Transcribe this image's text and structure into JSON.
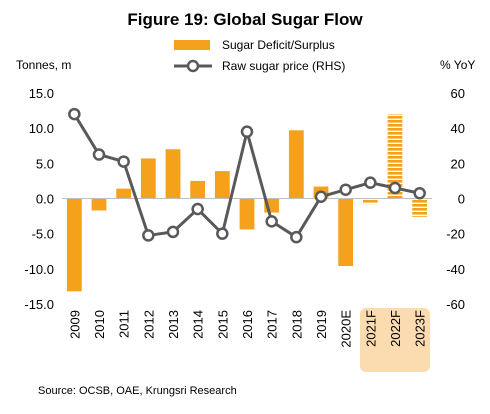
{
  "chart_data": {
    "type": "bar",
    "title": "Figure 19: Global Sugar Flow",
    "y_left_unit": "Tonnes, m",
    "y_right_unit": "% YoY",
    "categories": [
      "2009",
      "2010",
      "2011",
      "2012",
      "2013",
      "2014",
      "2015",
      "2016",
      "2017",
      "2018",
      "2019",
      "2020E",
      "2021F",
      "2022F",
      "2023F"
    ],
    "forecast_categories": [
      "2021F",
      "2022F",
      "2023F"
    ],
    "series": [
      {
        "name": "Sugar Deficit/Surplus",
        "kind": "bar",
        "axis": "left",
        "color": "#F5A11C",
        "values": [
          -13.2,
          -1.7,
          1.4,
          5.7,
          7.0,
          2.5,
          3.9,
          -4.4,
          -2.0,
          9.7,
          1.7,
          -9.6,
          -0.8,
          12.0,
          -2.6
        ]
      },
      {
        "name": "Raw sugar price (RHS)",
        "kind": "line",
        "axis": "right",
        "color": "#595959",
        "values": [
          48,
          25,
          21,
          -21,
          -19,
          -6,
          -20,
          38,
          -13,
          -22,
          1,
          5,
          9,
          6,
          3
        ]
      }
    ],
    "y_left": {
      "min": -15,
      "max": 15,
      "ticks": [
        "15.0",
        "10.0",
        "5.0",
        "0.0",
        "-5.0",
        "-10.0",
        "-15.0"
      ]
    },
    "y_right": {
      "min": -60,
      "max": 60,
      "ticks": [
        "60",
        "40",
        "20",
        "0",
        "-20",
        "-40",
        "-60"
      ]
    },
    "legend_position": "top",
    "grid": false
  },
  "source": "Source: OCSB, OAE, Krungsri Research"
}
